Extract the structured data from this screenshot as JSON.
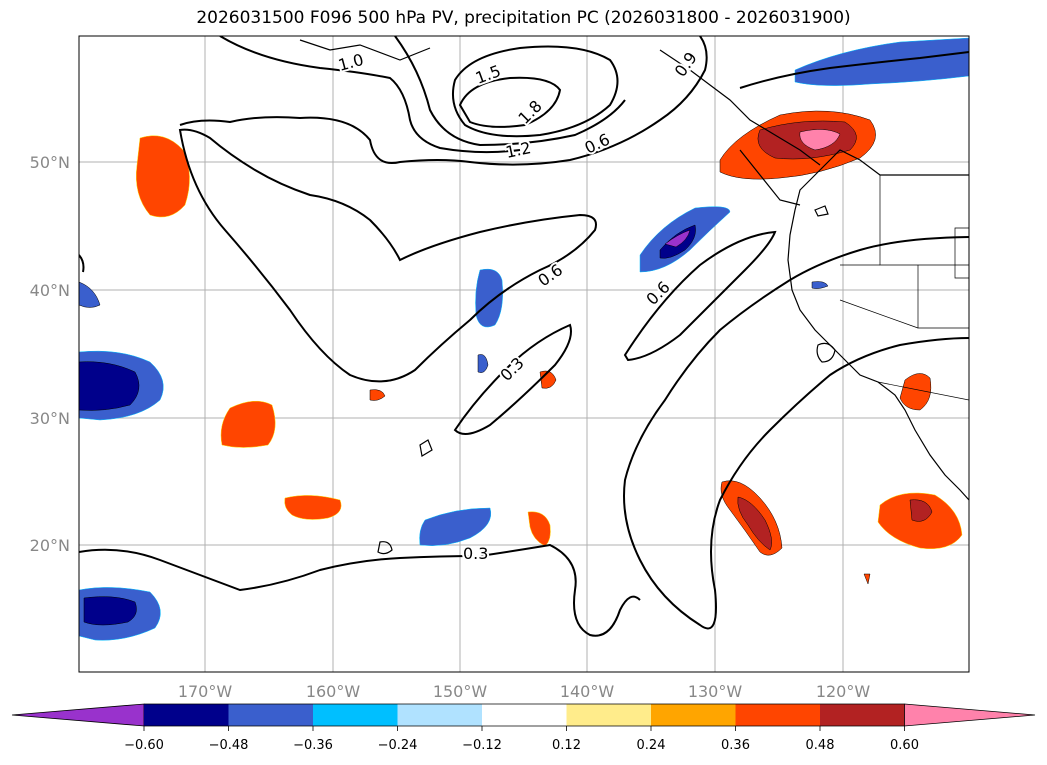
{
  "title": "2026031500 F096 500 hPa PV, precipitation PC (2026031800 - 2026031900)",
  "map": {
    "lon_labels": [
      "170°W",
      "160°W",
      "150°W",
      "140°W",
      "130°W",
      "120°W"
    ],
    "lat_labels": [
      "50°N",
      "40°N",
      "30°N",
      "20°N"
    ],
    "contour_labels": [
      "1.0",
      "1.5",
      "1.8",
      "1.2",
      "0.6",
      "0.9",
      "0.6",
      "0.3",
      "0.6",
      "0.3"
    ]
  },
  "colorbar": {
    "ticks": [
      "−0.60",
      "−0.48",
      "−0.36",
      "−0.24",
      "−0.12",
      "0.12",
      "0.24",
      "0.36",
      "0.48",
      "0.60"
    ],
    "colors": [
      "#9932cc",
      "#00008b",
      "#3a5fcd",
      "#00bfff",
      "#b0e2ff",
      "#ffffff",
      "#ffec8b",
      "#ffa500",
      "#ff4500",
      "#b22222",
      "#ff82ab"
    ]
  }
}
